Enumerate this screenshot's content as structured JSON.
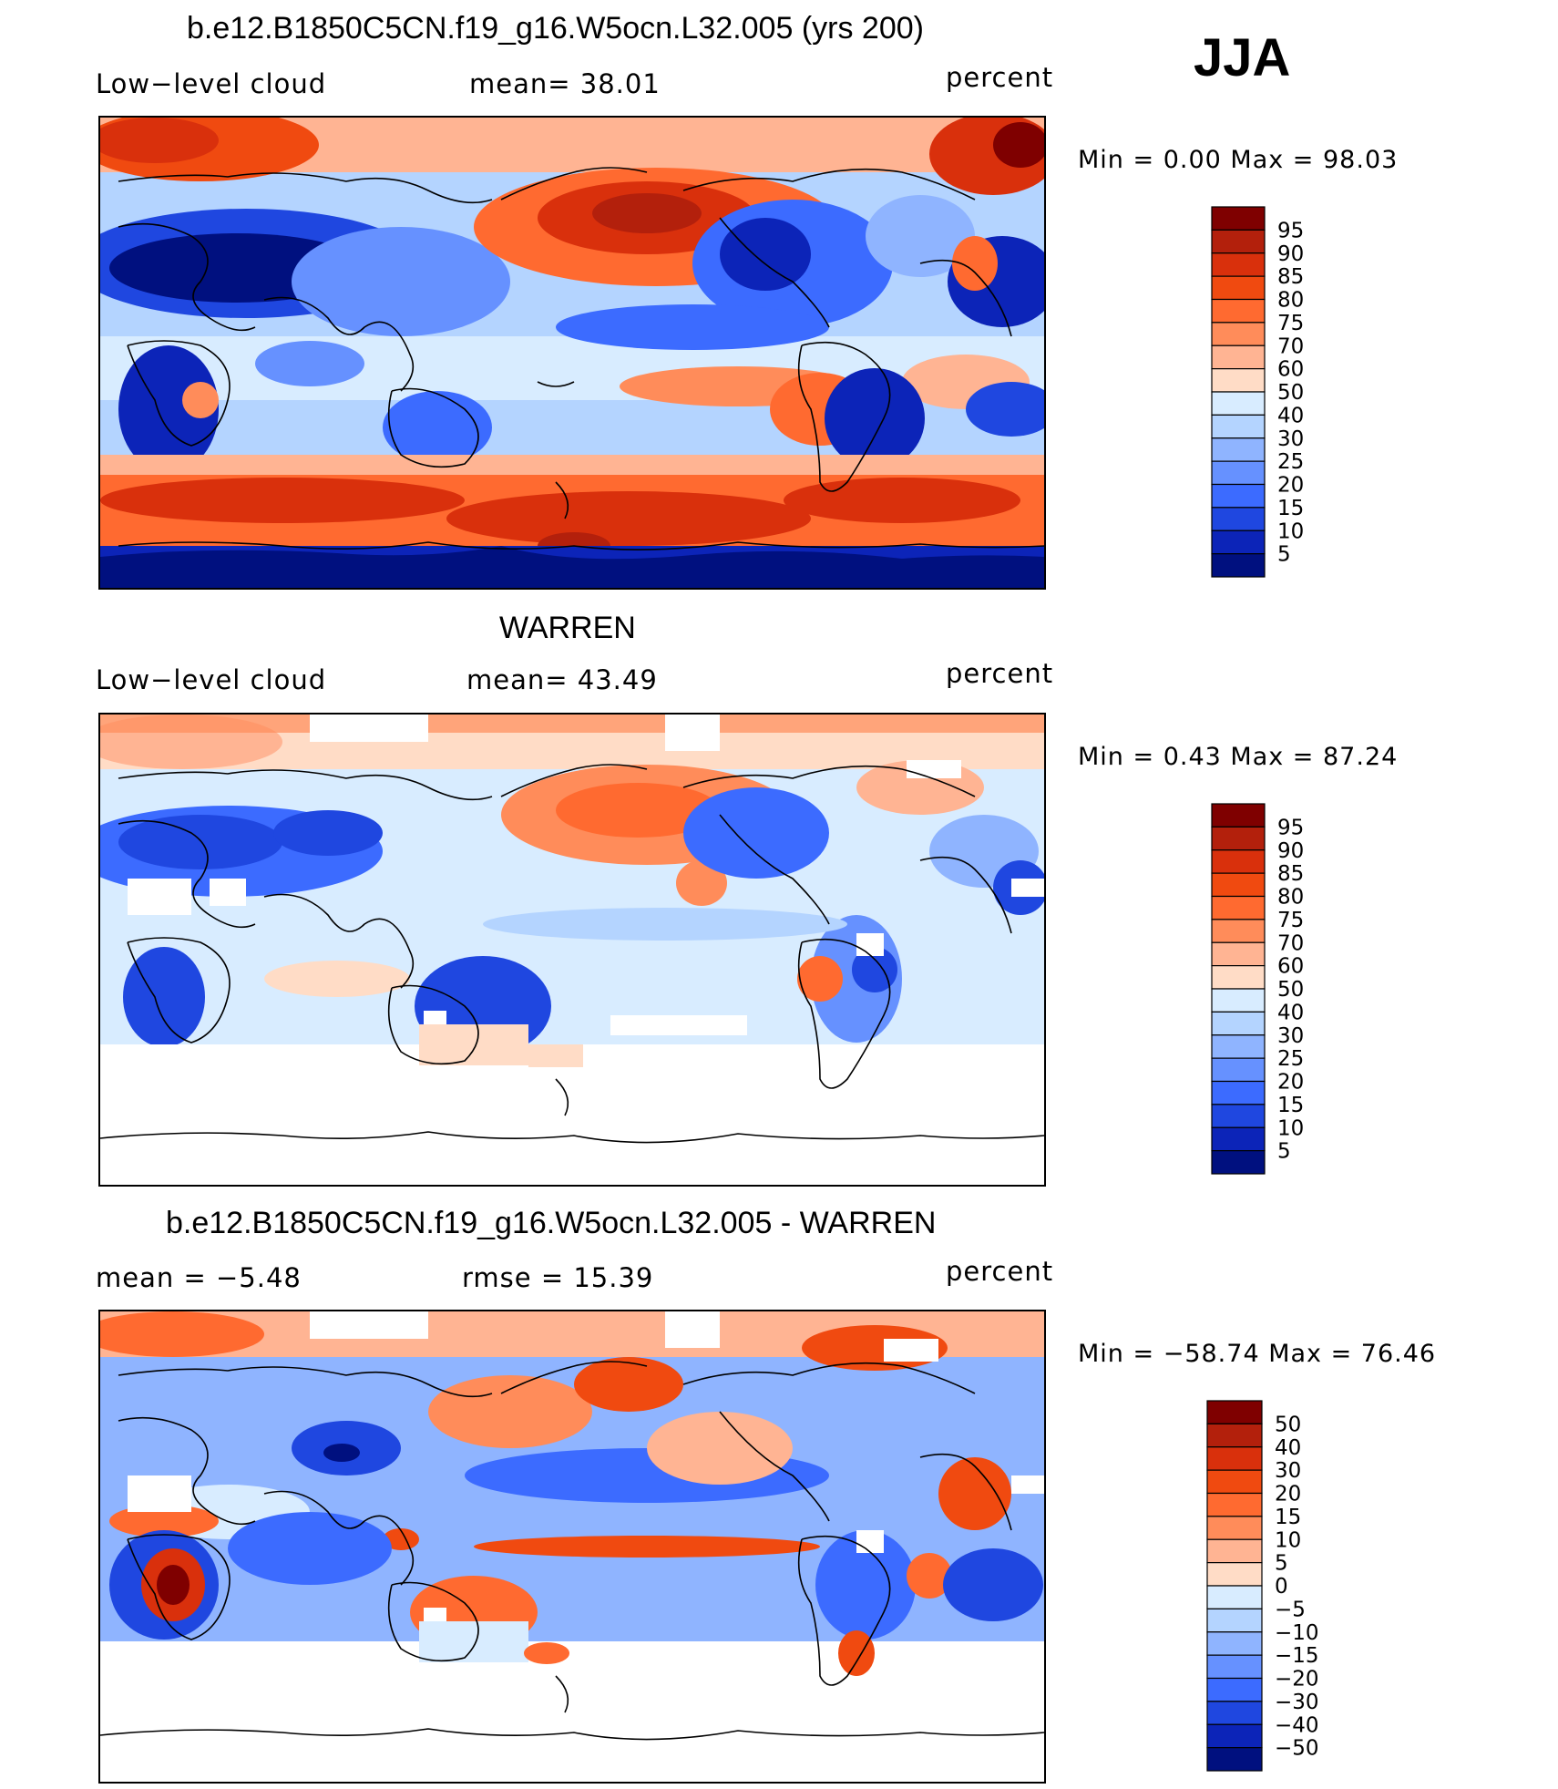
{
  "season": "JJA",
  "panels": [
    {
      "title": "b.e12.B1850C5CN.f19_g16.W5ocn.L32.005 (yrs 200)",
      "left_label": "Low−level  cloud",
      "mid_label": "mean=   38.01",
      "right_label": "percent",
      "minmax": "Min  =     0.00  Max  =    98.03",
      "kind": "model"
    },
    {
      "title": "WARREN",
      "left_label": "Low−level  cloud",
      "mid_label": "mean=   43.49",
      "right_label": "percent",
      "minmax": "Min  =     0.43  Max  =    87.24",
      "kind": "obs"
    },
    {
      "title": "b.e12.B1850C5CN.f19_g16.W5ocn.L32.005 - WARREN",
      "left_label": "mean  =    −5.48",
      "mid_label": "rmse  =    15.39",
      "right_label": "percent",
      "minmax": "Min  = −58.74  Max  =    76.46",
      "kind": "diff"
    }
  ],
  "colorbars": {
    "abs": {
      "labels": [
        "95",
        "90",
        "85",
        "80",
        "75",
        "70",
        "60",
        "50",
        "40",
        "30",
        "25",
        "20",
        "15",
        "10",
        "5"
      ],
      "colors": [
        "#7f0000",
        "#b3200c",
        "#d9300c",
        "#f04a10",
        "#ff6a30",
        "#ff8c5a",
        "#ffb493",
        "#ffdcc6",
        "#d8ecff",
        "#b4d4ff",
        "#8fb4ff",
        "#6691ff",
        "#3c6bff",
        "#1f47e0",
        "#0c24b8",
        "#00107f"
      ]
    },
    "diff": {
      "labels": [
        "50",
        "40",
        "30",
        "20",
        "15",
        "10",
        "5",
        "0",
        "−5",
        "−10",
        "−15",
        "−20",
        "−30",
        "−40",
        "−50"
      ],
      "colors": [
        "#7f0000",
        "#b3200c",
        "#d9300c",
        "#f04a10",
        "#ff6a30",
        "#ff8c5a",
        "#ffb493",
        "#ffdcc6",
        "#d8ecff",
        "#b4d4ff",
        "#8fb4ff",
        "#6691ff",
        "#3c6bff",
        "#1f47e0",
        "#0c24b8",
        "#00107f"
      ]
    }
  }
}
